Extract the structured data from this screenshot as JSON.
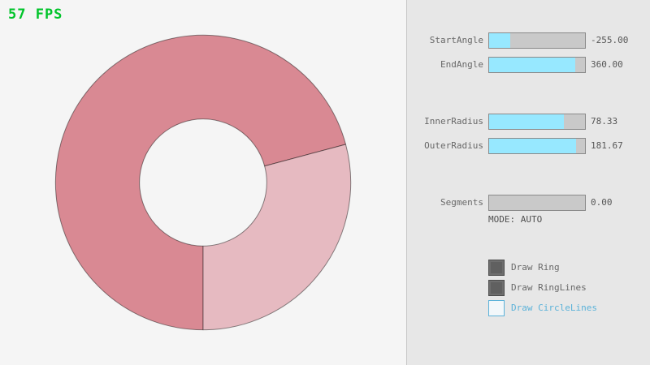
{
  "fps": {
    "text": "57 FPS"
  },
  "colors": {
    "fps_green": "#00c42a",
    "ring_dark": "#d98993",
    "ring_light": "#e6bac1",
    "ring_outline": "#4a4a4a",
    "slider_fill": "#97e8ff",
    "slider_track": "#c9c9c9",
    "slider_border": "#8a8a8a",
    "label_gray": "#686868",
    "checkbox_checked": "#606060",
    "focus_blue": "#5bb2d9"
  },
  "panel": {
    "sliders": [
      {
        "label": "StartAngle",
        "value": "-255.00",
        "fill_pct": 21.7
      },
      {
        "label": "EndAngle",
        "value": "360.00",
        "fill_pct": 90.0
      },
      {
        "label": "InnerRadius",
        "value": "78.33",
        "fill_pct": 78.3
      },
      {
        "label": "OuterRadius",
        "value": "181.67",
        "fill_pct": 90.8
      },
      {
        "label": "Segments",
        "value": "0.00",
        "fill_pct": 0
      }
    ],
    "mode_text": "MODE: AUTO",
    "checkboxes": [
      {
        "label": "Draw Ring",
        "checked": true
      },
      {
        "label": "Draw RingLines",
        "checked": true
      },
      {
        "label": "Draw CircleLines",
        "checked": false
      }
    ]
  }
}
